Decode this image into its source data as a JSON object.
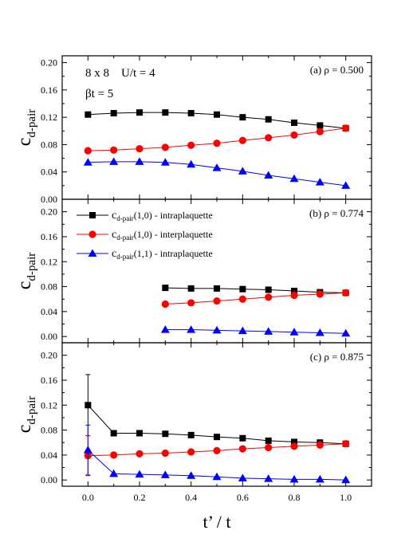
{
  "chart_data": [
    {
      "type": "line",
      "panel_label": "(a) ρ = 0.500",
      "info_lines": [
        "8 x 8    U/t = 4",
        "βt = 5"
      ],
      "ylabel_main": "c",
      "ylabel_sub": "d-pair",
      "ylim": [
        0.0,
        0.21
      ],
      "yticks": [
        "0.00",
        "0.04",
        "0.08",
        "0.12",
        "0.16",
        "0.20"
      ],
      "series": [
        {
          "x": [
            0.0,
            0.1,
            0.2,
            0.3,
            0.4,
            0.5,
            0.6,
            0.7,
            0.8,
            0.9,
            1.0
          ],
          "y": [
            0.124,
            0.126,
            0.127,
            0.127,
            0.126,
            0.124,
            0.12,
            0.117,
            0.112,
            0.108,
            0.104
          ],
          "marker": "square",
          "color": "#000000"
        },
        {
          "x": [
            0.0,
            0.1,
            0.2,
            0.3,
            0.4,
            0.5,
            0.6,
            0.7,
            0.8,
            0.9,
            1.0
          ],
          "y": [
            0.071,
            0.072,
            0.074,
            0.076,
            0.079,
            0.082,
            0.086,
            0.09,
            0.094,
            0.099,
            0.104
          ],
          "marker": "circle",
          "color": "#ff0000"
        },
        {
          "x": [
            0.0,
            0.1,
            0.2,
            0.3,
            0.4,
            0.5,
            0.6,
            0.7,
            0.8,
            0.9,
            1.0
          ],
          "y": [
            0.054,
            0.055,
            0.055,
            0.054,
            0.051,
            0.046,
            0.041,
            0.035,
            0.03,
            0.025,
            0.02
          ],
          "marker": "triangle",
          "color": "#0000ff"
        }
      ]
    },
    {
      "type": "line",
      "panel_label": "(b) ρ = 0.774",
      "ylabel_main": "c",
      "ylabel_sub": "d-pair",
      "ylim": [
        -0.01,
        0.22
      ],
      "yticks": [
        "0.00",
        "0.04",
        "0.08",
        "0.12",
        "0.16",
        "0.20"
      ],
      "legend": [
        {
          "main": "c",
          "sub": "d-pair",
          "suffix": "(1,0) - intraplaquette",
          "marker": "square",
          "color": "#000000"
        },
        {
          "main": "c",
          "sub": "d-pair",
          "suffix": "(1,0) - interplaquette",
          "marker": "circle",
          "color": "#ff0000"
        },
        {
          "main": "c",
          "sub": "d-pair",
          "suffix": "(1,1) - intraplaquette",
          "marker": "triangle",
          "color": "#0000ff"
        }
      ],
      "series": [
        {
          "x": [
            0.3,
            0.4,
            0.5,
            0.6,
            0.7,
            0.8,
            0.9,
            1.0
          ],
          "y": [
            0.078,
            0.077,
            0.077,
            0.076,
            0.075,
            0.073,
            0.071,
            0.07
          ],
          "marker": "square",
          "color": "#000000"
        },
        {
          "x": [
            0.3,
            0.4,
            0.5,
            0.6,
            0.7,
            0.8,
            0.9,
            1.0
          ],
          "y": [
            0.052,
            0.054,
            0.057,
            0.06,
            0.063,
            0.066,
            0.068,
            0.07
          ],
          "marker": "circle",
          "color": "#ff0000"
        },
        {
          "x": [
            0.3,
            0.4,
            0.5,
            0.6,
            0.7,
            0.8,
            0.9,
            1.0
          ],
          "y": [
            0.011,
            0.011,
            0.01,
            0.009,
            0.008,
            0.007,
            0.006,
            0.005
          ],
          "marker": "triangle",
          "color": "#0000ff"
        }
      ]
    },
    {
      "type": "line",
      "panel_label": "(c) ρ = 0.875",
      "ylabel_main": "c",
      "ylabel_sub": "d-pair",
      "ylim": [
        -0.01,
        0.22
      ],
      "yticks": [
        "0.00",
        "0.04",
        "0.08",
        "0.12",
        "0.16",
        "0.20"
      ],
      "xlabel": "t’ / t",
      "xlim": [
        -0.1,
        1.1
      ],
      "xticks": [
        "0.0",
        "0.2",
        "0.4",
        "0.6",
        "0.8",
        "1.0"
      ],
      "series": [
        {
          "x": [
            0.0,
            0.1,
            0.2,
            0.3,
            0.4,
            0.5,
            0.6,
            0.7,
            0.8,
            0.9,
            1.0
          ],
          "y": [
            0.12,
            0.075,
            0.075,
            0.074,
            0.072,
            0.069,
            0.067,
            0.063,
            0.061,
            0.06,
            0.058
          ],
          "err": [
            0.049,
            0,
            0,
            0,
            0,
            0,
            0,
            0,
            0,
            0,
            0
          ],
          "marker": "square",
          "color": "#000000"
        },
        {
          "x": [
            0.0,
            0.1,
            0.2,
            0.3,
            0.4,
            0.5,
            0.6,
            0.7,
            0.8,
            0.9,
            1.0
          ],
          "y": [
            0.039,
            0.04,
            0.042,
            0.043,
            0.045,
            0.047,
            0.05,
            0.052,
            0.054,
            0.056,
            0.058
          ],
          "err": [
            0.032,
            0,
            0,
            0,
            0,
            0,
            0,
            0,
            0,
            0,
            0
          ],
          "marker": "circle",
          "color": "#ff0000"
        },
        {
          "x": [
            0.0,
            0.1,
            0.2,
            0.3,
            0.4,
            0.5,
            0.6,
            0.7,
            0.8,
            0.9,
            1.0
          ],
          "y": [
            0.048,
            0.01,
            0.009,
            0.008,
            0.007,
            0.005,
            0.003,
            0.002,
            0.001,
            0.001,
            0.0
          ],
          "err": [
            0.04,
            0,
            0,
            0,
            0,
            0,
            0,
            0,
            0,
            0,
            0
          ],
          "marker": "triangle",
          "color": "#0000ff"
        }
      ]
    }
  ]
}
